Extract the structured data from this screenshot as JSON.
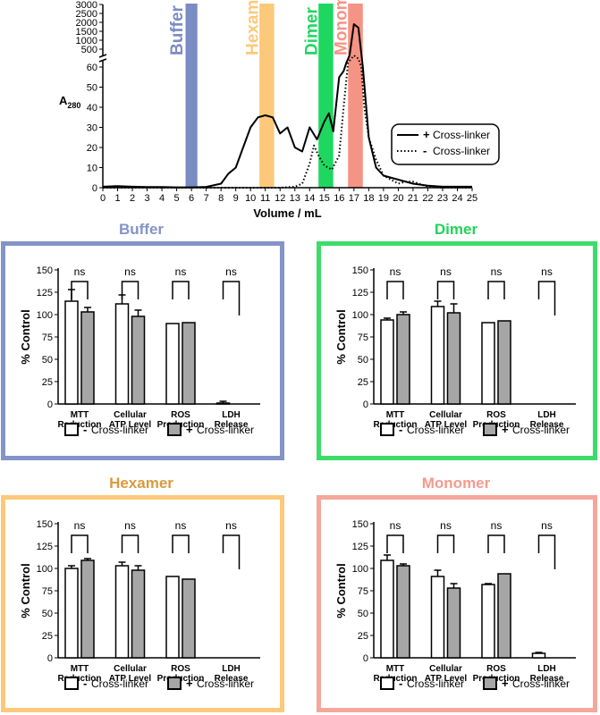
{
  "chart_data": [
    {
      "type": "line",
      "id": "chromatogram",
      "xlabel": "Volume / mL",
      "ylabel_main": "A",
      "ylabel_sub": "280",
      "xlim": [
        0,
        25
      ],
      "ylim_lower": [
        0,
        60
      ],
      "ylim_upper": [
        500,
        3000
      ],
      "x_ticks": [
        "0",
        "1",
        "2",
        "3",
        "4",
        "5",
        "6",
        "7",
        "8",
        "9",
        "10",
        "11",
        "12",
        "13",
        "14",
        "15",
        "16",
        "17",
        "18",
        "19",
        "20",
        "21",
        "22",
        "23",
        "24",
        "25"
      ],
      "y_ticks_lower": [
        "0",
        "10",
        "20",
        "30",
        "40",
        "50",
        "60"
      ],
      "y_ticks_upper": [
        "500",
        "1000",
        "1500",
        "2000",
        "2500",
        "3000"
      ],
      "fractions": [
        {
          "name": "Buffer",
          "range": [
            5.6,
            6.4
          ],
          "color": "#7b8cc4",
          "label_color": "#7b8cc4"
        },
        {
          "name": "Hexamer",
          "range": [
            10.6,
            11.6
          ],
          "color": "#fcc97a",
          "label_color": "#fcc97a"
        },
        {
          "name": "Dimer",
          "range": [
            14.6,
            15.6
          ],
          "color": "#1ed760",
          "label_color": "#1ed760"
        },
        {
          "name": "Monomer",
          "range": [
            16.6,
            17.6
          ],
          "color": "#f59384",
          "label_color": "#f59384"
        }
      ],
      "series": [
        {
          "name": "+ Cross-linker",
          "legend_sign": "+",
          "legend_text": "Cross-linker",
          "style": "solid",
          "x": [
            0,
            1,
            2,
            3,
            4,
            5,
            6,
            7,
            8,
            8.5,
            9,
            9.5,
            10,
            10.5,
            11,
            11.5,
            12,
            12.5,
            13,
            13.5,
            14,
            14.5,
            15,
            15.3,
            15.6,
            16,
            16.3,
            16.5,
            16.7,
            17,
            17.3,
            17.6,
            18,
            18.5,
            19,
            20,
            21,
            22,
            23,
            24,
            25
          ],
          "y": [
            0.5,
            0.8,
            0.5,
            0.3,
            0.3,
            0.2,
            0.2,
            0.4,
            2,
            7,
            10,
            20,
            30,
            35,
            36,
            35,
            27,
            30,
            20,
            18,
            30,
            24,
            33,
            37,
            28,
            55,
            58,
            90,
            300,
            1900,
            1700,
            60,
            25,
            10,
            6,
            4,
            2,
            1,
            0.5,
            0.5,
            0.5
          ]
        },
        {
          "name": "- Cross-linker",
          "legend_sign": "-",
          "legend_text": "Cross-linker",
          "style": "dotted",
          "x": [
            0,
            10,
            12,
            13,
            13.5,
            14,
            14.3,
            14.6,
            15,
            15.5,
            16,
            16.3,
            16.6,
            17,
            17.3,
            17.5,
            17.7,
            18,
            18.5,
            19,
            20,
            20.5,
            21,
            22,
            23,
            25
          ],
          "y": [
            0,
            0,
            0,
            0.5,
            2,
            12,
            21,
            16,
            11,
            9,
            16,
            40,
            70,
            300,
            200,
            60,
            40,
            25,
            14,
            6,
            2,
            3,
            3,
            0.5,
            0,
            0
          ]
        }
      ]
    },
    {
      "type": "bar",
      "id": "buffer",
      "title": "Buffer",
      "title_color": "#8493c8",
      "frame_color": "#8493c8",
      "ylabel": "% Control",
      "ylim": [
        0,
        150
      ],
      "y_ticks": [
        "0",
        "25",
        "50",
        "75",
        "100",
        "125",
        "150"
      ],
      "categories": [
        "MTT Reduction",
        "Cellular ATP Level",
        "ROS Production",
        "LDH Release"
      ],
      "category_lines": [
        [
          "MTT",
          "Reduction"
        ],
        [
          "Cellular",
          "ATP Level"
        ],
        [
          "ROS",
          "Production"
        ],
        [
          "LDH",
          "Release"
        ]
      ],
      "series": [
        {
          "name": "- Cross-linker",
          "values": [
            115,
            112,
            90,
            1
          ],
          "errors": [
            13,
            10,
            0,
            2
          ],
          "fill": "#ffffff"
        },
        {
          "name": "+ Cross-linker",
          "values": [
            103,
            98,
            91,
            0
          ],
          "errors": [
            5,
            7,
            0,
            0
          ],
          "fill": "#a6a6a6"
        }
      ],
      "significance": [
        "ns",
        "ns",
        "ns",
        "ns"
      ],
      "legend": {
        "minus_sign": "-",
        "plus_sign": "+",
        "text": "Cross-linker"
      }
    },
    {
      "type": "bar",
      "id": "dimer",
      "title": "Dimer",
      "title_color": "#22d45a",
      "frame_color": "#3ddc6a",
      "ylabel": "% Control",
      "ylim": [
        0,
        150
      ],
      "y_ticks": [
        "0",
        "25",
        "50",
        "75",
        "100",
        "125",
        "150"
      ],
      "categories": [
        "MTT Reduction",
        "Cellular ATP Level",
        "ROS Production",
        "LDH Release"
      ],
      "category_lines": [
        [
          "MTT",
          "Reduction"
        ],
        [
          "Cellular",
          "ATP Level"
        ],
        [
          "ROS",
          "Production"
        ],
        [
          "LDH",
          "Release"
        ]
      ],
      "series": [
        {
          "name": "- Cross-linker",
          "values": [
            94,
            109,
            91,
            0
          ],
          "errors": [
            2,
            6,
            0,
            0
          ],
          "fill": "#ffffff"
        },
        {
          "name": "+ Cross-linker",
          "values": [
            100,
            102,
            93,
            0
          ],
          "errors": [
            3,
            10,
            0,
            0
          ],
          "fill": "#a6a6a6"
        }
      ],
      "significance": [
        "ns",
        "ns",
        "ns",
        "ns"
      ],
      "legend": {
        "minus_sign": "-",
        "plus_sign": "+",
        "text": "Cross-linker"
      }
    },
    {
      "type": "bar",
      "id": "hexamer",
      "title": "Hexamer",
      "title_color": "#d99a3e",
      "frame_color": "#fcc97a",
      "ylabel": "% Control",
      "ylim": [
        0,
        150
      ],
      "y_ticks": [
        "0",
        "25",
        "50",
        "75",
        "100",
        "125",
        "150"
      ],
      "categories": [
        "MTT Reduction",
        "Cellular ATP Level",
        "ROS Production",
        "LDH Release"
      ],
      "category_lines": [
        [
          "MTT",
          "Reduction"
        ],
        [
          "Cellular",
          "ATP Level"
        ],
        [
          "ROS",
          "Production"
        ],
        [
          "LDH",
          "Release"
        ]
      ],
      "series": [
        {
          "name": "- Cross-linker",
          "values": [
            100,
            103,
            91,
            0
          ],
          "errors": [
            3,
            4,
            0,
            0
          ],
          "fill": "#ffffff"
        },
        {
          "name": "+ Cross-linker",
          "values": [
            109,
            98,
            88,
            0
          ],
          "errors": [
            2,
            5,
            0,
            0
          ],
          "fill": "#a6a6a6"
        }
      ],
      "significance": [
        "ns",
        "ns",
        "ns",
        "ns"
      ],
      "legend": {
        "minus_sign": "-",
        "plus_sign": "+",
        "text": "Cross-linker"
      }
    },
    {
      "type": "bar",
      "id": "monomer",
      "title": "Monomer",
      "title_color": "#f59a8c",
      "frame_color": "#f5a79a",
      "ylabel": "% Control",
      "ylim": [
        0,
        150
      ],
      "y_ticks": [
        "0",
        "25",
        "50",
        "75",
        "100",
        "125",
        "150"
      ],
      "categories": [
        "MTT Reduction",
        "Cellular ATP Level",
        "ROS Production",
        "LDH Release"
      ],
      "category_lines": [
        [
          "MTT",
          "Reduction"
        ],
        [
          "Cellular",
          "ATP Level"
        ],
        [
          "ROS",
          "Production"
        ],
        [
          "LDH",
          "Release"
        ]
      ],
      "series": [
        {
          "name": "- Cross-linker",
          "values": [
            109,
            91,
            82,
            5
          ],
          "errors": [
            6,
            7,
            1,
            1
          ],
          "fill": "#ffffff"
        },
        {
          "name": "+ Cross-linker",
          "values": [
            103,
            78,
            94,
            0
          ],
          "errors": [
            2,
            5,
            0,
            0
          ],
          "fill": "#a6a6a6"
        }
      ],
      "significance": [
        "ns",
        "ns",
        "ns",
        "ns"
      ],
      "legend": {
        "minus_sign": "-",
        "plus_sign": "+",
        "text": "Cross-linker"
      }
    }
  ]
}
